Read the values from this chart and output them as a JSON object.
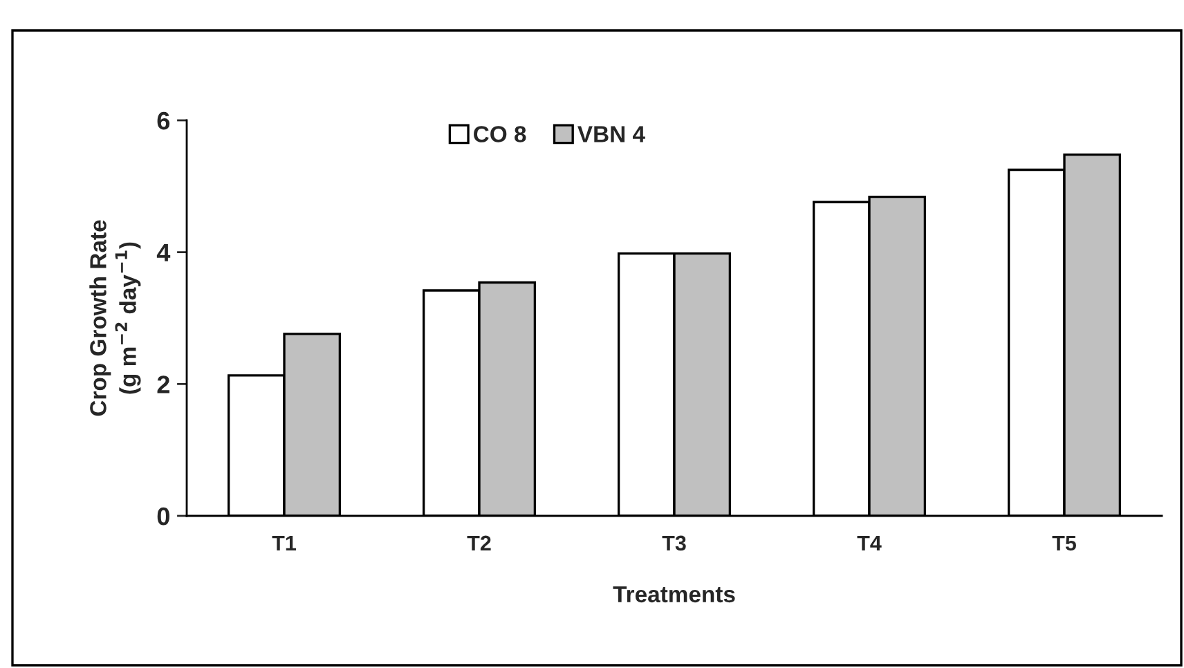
{
  "chart_data": {
    "type": "bar",
    "xlabel": "Treatments",
    "ylabel": "Crop Growth Rate\n(g m$^{−2}$ day$^{−1}$)",
    "categories": [
      "T1",
      "T2",
      "T3",
      "T4",
      "T5"
    ],
    "series": [
      {
        "name": "CO 8",
        "color": "#ffffff",
        "values": [
          2.13,
          3.42,
          3.98,
          4.76,
          5.25
        ]
      },
      {
        "name": "VBN 4",
        "color": "#c0c0c0",
        "values": [
          2.76,
          3.54,
          3.98,
          4.84,
          5.48
        ]
      }
    ],
    "ylim": [
      0,
      6
    ],
    "yticks": [
      0,
      2,
      4,
      6
    ],
    "grid": false,
    "legend": "top"
  }
}
